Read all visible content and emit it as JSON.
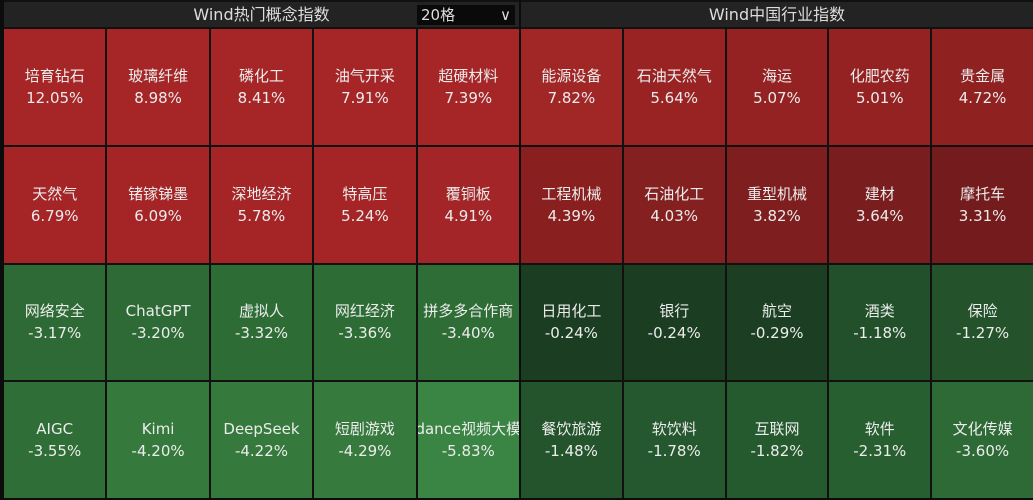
{
  "left": {
    "title": "Wind热门概念指数",
    "grid_select": "20格",
    "chevron": "chevron-down-icon",
    "tiles": [
      {
        "name": "培育钻石",
        "pct": "12.05%",
        "color": "#a62527"
      },
      {
        "name": "玻璃纤维",
        "pct": "8.98%",
        "color": "#a62527"
      },
      {
        "name": "磷化工",
        "pct": "8.41%",
        "color": "#a62527"
      },
      {
        "name": "油气开采",
        "pct": "7.91%",
        "color": "#a62527"
      },
      {
        "name": "超硬材料",
        "pct": "7.39%",
        "color": "#a62527"
      },
      {
        "name": "天然气",
        "pct": "6.79%",
        "color": "#a52527"
      },
      {
        "name": "锗镓锑墨",
        "pct": "6.09%",
        "color": "#a52527"
      },
      {
        "name": "深地经济",
        "pct": "5.78%",
        "color": "#a52527"
      },
      {
        "name": "特高压",
        "pct": "5.24%",
        "color": "#a52527"
      },
      {
        "name": "覆铜板",
        "pct": "4.91%",
        "color": "#a32527"
      },
      {
        "name": "网络安全",
        "pct": "-3.17%",
        "color": "#2d6a35"
      },
      {
        "name": "ChatGPT",
        "pct": "-3.20%",
        "color": "#2d6a35"
      },
      {
        "name": "虚拟人",
        "pct": "-3.32%",
        "color": "#2e6c36"
      },
      {
        "name": "网红经济",
        "pct": "-3.36%",
        "color": "#2e6c36"
      },
      {
        "name": "拼多多合作商",
        "pct": "-3.40%",
        "color": "#2f6d36"
      },
      {
        "name": "AIGC",
        "pct": "-3.55%",
        "color": "#2f6e37"
      },
      {
        "name": "Kimi",
        "pct": "-4.20%",
        "color": "#35793c"
      },
      {
        "name": "DeepSeek",
        "pct": "-4.22%",
        "color": "#35793c"
      },
      {
        "name": "短剧游戏",
        "pct": "-4.29%",
        "color": "#367a3d"
      },
      {
        "name": "dance视频大模",
        "pct": "-5.83%",
        "color": "#3b8544"
      }
    ]
  },
  "right": {
    "title": "Wind中国行业指数",
    "tiles": [
      {
        "name": "能源设备",
        "pct": "7.82%",
        "color": "#a12626"
      },
      {
        "name": "石油天然气",
        "pct": "5.64%",
        "color": "#992323"
      },
      {
        "name": "海运",
        "pct": "5.07%",
        "color": "#952222"
      },
      {
        "name": "化肥农药",
        "pct": "5.01%",
        "color": "#952222"
      },
      {
        "name": "贵金属",
        "pct": "4.72%",
        "color": "#8f2121"
      },
      {
        "name": "工程机械",
        "pct": "4.39%",
        "color": "#8a1f20"
      },
      {
        "name": "石油化工",
        "pct": "4.03%",
        "color": "#842020"
      },
      {
        "name": "重型机械",
        "pct": "3.82%",
        "color": "#7e1e1f"
      },
      {
        "name": "建材",
        "pct": "3.64%",
        "color": "#7a1d1e"
      },
      {
        "name": "摩托车",
        "pct": "3.31%",
        "color": "#741c1d"
      },
      {
        "name": "日用化工",
        "pct": "-0.24%",
        "color": "#1b3d22"
      },
      {
        "name": "银行",
        "pct": "-0.24%",
        "color": "#1b3d22"
      },
      {
        "name": "航空",
        "pct": "-0.29%",
        "color": "#1c3f23"
      },
      {
        "name": "酒类",
        "pct": "-1.18%",
        "color": "#21502a"
      },
      {
        "name": "保险",
        "pct": "-1.27%",
        "color": "#23522b"
      },
      {
        "name": "餐饮旅游",
        "pct": "-1.48%",
        "color": "#24542c"
      },
      {
        "name": "软饮料",
        "pct": "-1.78%",
        "color": "#25582e"
      },
      {
        "name": "互联网",
        "pct": "-1.82%",
        "color": "#25592e"
      },
      {
        "name": "软件",
        "pct": "-2.31%",
        "color": "#285f31"
      },
      {
        "name": "文化传媒",
        "pct": "-3.60%",
        "color": "#2d6a35"
      }
    ]
  }
}
